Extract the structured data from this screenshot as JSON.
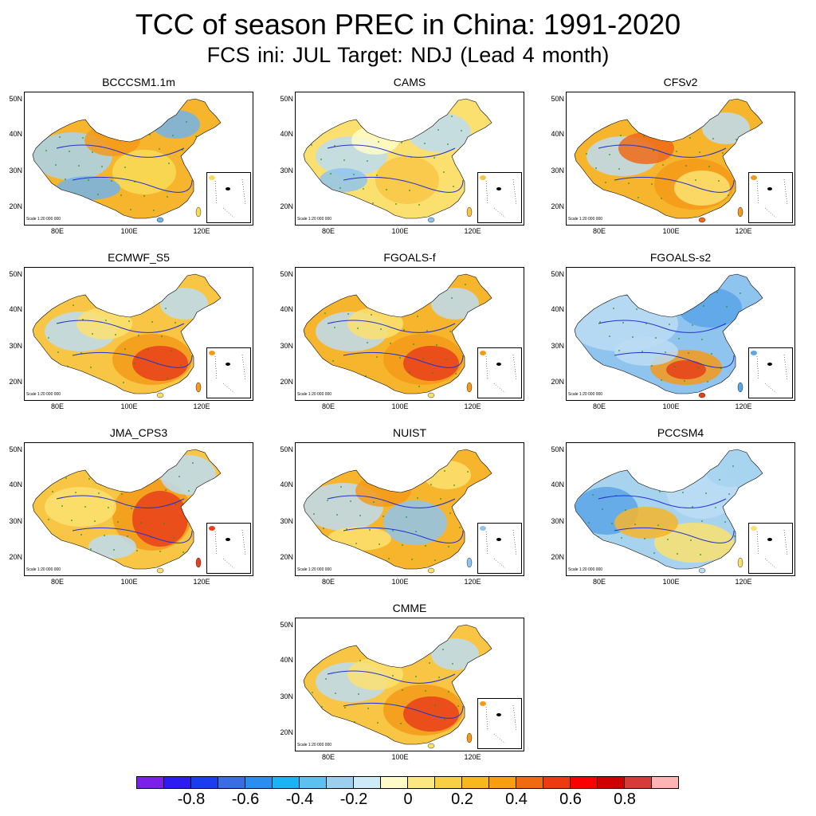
{
  "header": {
    "title": "TCC of season PREC in China: 1991-2020",
    "subtitle": "FCS ini: JUL    Target: NDJ (Lead 4 month)"
  },
  "axes": {
    "lat_labels": [
      "50N",
      "40N",
      "30N",
      "20N"
    ],
    "lon_labels": [
      "80E",
      "100E",
      "120E"
    ]
  },
  "scale_text": "Scale 1:20 000 000",
  "panels": [
    {
      "name": "BCCCSM1.1m",
      "pattern": "mixed",
      "colors": [
        "#f6b52c",
        "#a7d3ef",
        "#f8dc58",
        "#f49a1a",
        "#72b4ec"
      ]
    },
    {
      "name": "CAMS",
      "pattern": "weak",
      "colors": [
        "#fbe070",
        "#bcdcf3",
        "#f8c544",
        "#fefbc8",
        "#8fc4ef"
      ]
    },
    {
      "name": "CFSv2",
      "pattern": "south-positive",
      "colors": [
        "#f6b52c",
        "#bcdcf3",
        "#f49a1a",
        "#fbe070",
        "#ef6a18"
      ]
    },
    {
      "name": "ECMWF_S5",
      "pattern": "south-positive",
      "colors": [
        "#f8c544",
        "#bcdcf3",
        "#f49a1a",
        "#e8401a",
        "#fbe070"
      ]
    },
    {
      "name": "FGOALS-f",
      "pattern": "south-positive",
      "colors": [
        "#f6b52c",
        "#bcdcf3",
        "#f49a1a",
        "#e8401a",
        "#fbe070"
      ]
    },
    {
      "name": "FGOALS-s2",
      "pattern": "north-negative",
      "colors": [
        "#8fc4ef",
        "#bcdcf3",
        "#5aa4e8",
        "#f49a1a",
        "#e8401a"
      ]
    },
    {
      "name": "JMA_CPS3",
      "pattern": "east-positive",
      "colors": [
        "#f8c544",
        "#f49a1a",
        "#e8401a",
        "#bcdcf3",
        "#fbe070"
      ]
    },
    {
      "name": "NUIST",
      "pattern": "mixed",
      "colors": [
        "#f6b52c",
        "#bcdcf3",
        "#8fc4ef",
        "#f49a1a",
        "#fbe070"
      ]
    },
    {
      "name": "PCCSM4",
      "pattern": "west-negative",
      "colors": [
        "#a7d3ef",
        "#5aa4e8",
        "#fbe070",
        "#f6b52c",
        "#bcdcf3"
      ]
    },
    {
      "name": "CMME",
      "pattern": "south-positive",
      "colors": [
        "#f8c544",
        "#bcdcf3",
        "#f49a1a",
        "#e8401a",
        "#fbe070"
      ]
    }
  ],
  "colorbar": {
    "colors": [
      "#7a20e8",
      "#2c1cf0",
      "#1c3cf0",
      "#3a6ce4",
      "#2a8ef0",
      "#18b4f4",
      "#5cc0f0",
      "#9ccfee",
      "#ccebf7",
      "#fefbc8",
      "#fbe880",
      "#f8d044",
      "#f8b81c",
      "#f79e10",
      "#f26a10",
      "#ee3a10",
      "#fb0000",
      "#d00000",
      "#d83a3a",
      "#fcb4b4"
    ],
    "labels": [
      "-0.8",
      "-0.6",
      "-0.4",
      "-0.2",
      "0",
      "0.2",
      "0.4",
      "0.6",
      "0.8"
    ]
  }
}
